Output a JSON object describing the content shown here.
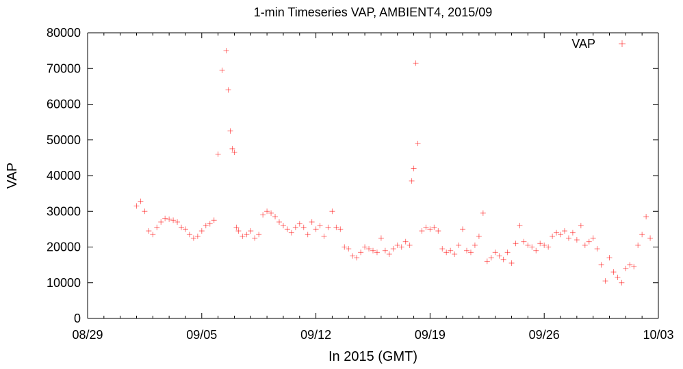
{
  "chart_data": {
    "type": "scatter",
    "title": "1-min Timeseries VAP, AMBIENT4, 2015/09",
    "xlabel": "In 2015 (GMT)",
    "ylabel": "VAP",
    "ylim": [
      0,
      80000
    ],
    "yticks": [
      "0",
      "10000",
      "20000",
      "30000",
      "40000",
      "50000",
      "60000",
      "70000",
      "80000"
    ],
    "xlim": [
      "2015-08-29",
      "2015-10-03"
    ],
    "xticks": [
      {
        "date": "2015-08-29",
        "label": "08/29"
      },
      {
        "date": "2015-09-05",
        "label": "09/05"
      },
      {
        "date": "2015-09-12",
        "label": "09/12"
      },
      {
        "date": "2015-09-19",
        "label": "09/19"
      },
      {
        "date": "2015-09-26",
        "label": "09/26"
      },
      {
        "date": "2015-10-03",
        "label": "10/03"
      }
    ],
    "minor_ticks_per_major": 7,
    "grid": false,
    "legend_position": "top-right",
    "marker": "plus",
    "color": "#ff0000",
    "series": [
      {
        "name": "VAP",
        "x": [
          "2015-09-01 00:00",
          "2015-09-01 06:00",
          "2015-09-01 12:00",
          "2015-09-01 18:00",
          "2015-09-02 00:00",
          "2015-09-02 06:00",
          "2015-09-02 12:00",
          "2015-09-02 18:00",
          "2015-09-03 00:00",
          "2015-09-03 06:00",
          "2015-09-03 12:00",
          "2015-09-03 18:00",
          "2015-09-04 00:00",
          "2015-09-04 06:00",
          "2015-09-04 12:00",
          "2015-09-04 18:00",
          "2015-09-05 00:00",
          "2015-09-05 06:00",
          "2015-09-05 12:00",
          "2015-09-05 18:00",
          "2015-09-06 00:00",
          "2015-09-06 06:00",
          "2015-09-06 12:00",
          "2015-09-06 15:00",
          "2015-09-06 18:00",
          "2015-09-06 21:00",
          "2015-09-07 00:00",
          "2015-09-07 03:00",
          "2015-09-07 06:00",
          "2015-09-07 12:00",
          "2015-09-07 18:00",
          "2015-09-08 00:00",
          "2015-09-08 06:00",
          "2015-09-08 12:00",
          "2015-09-08 18:00",
          "2015-09-09 00:00",
          "2015-09-09 06:00",
          "2015-09-09 12:00",
          "2015-09-09 18:00",
          "2015-09-10 00:00",
          "2015-09-10 06:00",
          "2015-09-10 12:00",
          "2015-09-10 18:00",
          "2015-09-11 00:00",
          "2015-09-11 06:00",
          "2015-09-11 12:00",
          "2015-09-11 18:00",
          "2015-09-12 00:00",
          "2015-09-12 06:00",
          "2015-09-12 12:00",
          "2015-09-12 18:00",
          "2015-09-13 00:00",
          "2015-09-13 06:00",
          "2015-09-13 12:00",
          "2015-09-13 18:00",
          "2015-09-14 00:00",
          "2015-09-14 06:00",
          "2015-09-14 12:00",
          "2015-09-14 18:00",
          "2015-09-15 00:00",
          "2015-09-15 06:00",
          "2015-09-15 12:00",
          "2015-09-15 18:00",
          "2015-09-16 00:00",
          "2015-09-16 06:00",
          "2015-09-16 12:00",
          "2015-09-16 18:00",
          "2015-09-17 00:00",
          "2015-09-17 06:00",
          "2015-09-17 12:00",
          "2015-09-17 18:00",
          "2015-09-17 21:00",
          "2015-09-18 00:00",
          "2015-09-18 03:00",
          "2015-09-18 06:00",
          "2015-09-18 12:00",
          "2015-09-18 18:00",
          "2015-09-19 00:00",
          "2015-09-19 06:00",
          "2015-09-19 12:00",
          "2015-09-19 18:00",
          "2015-09-20 00:00",
          "2015-09-20 06:00",
          "2015-09-20 12:00",
          "2015-09-20 18:00",
          "2015-09-21 00:00",
          "2015-09-21 06:00",
          "2015-09-21 12:00",
          "2015-09-21 18:00",
          "2015-09-22 00:00",
          "2015-09-22 06:00",
          "2015-09-22 12:00",
          "2015-09-22 18:00",
          "2015-09-23 00:00",
          "2015-09-23 06:00",
          "2015-09-23 12:00",
          "2015-09-23 18:00",
          "2015-09-24 00:00",
          "2015-09-24 06:00",
          "2015-09-24 12:00",
          "2015-09-24 18:00",
          "2015-09-25 00:00",
          "2015-09-25 06:00",
          "2015-09-25 12:00",
          "2015-09-25 18:00",
          "2015-09-26 00:00",
          "2015-09-26 06:00",
          "2015-09-26 12:00",
          "2015-09-26 18:00",
          "2015-09-27 00:00",
          "2015-09-27 06:00",
          "2015-09-27 12:00",
          "2015-09-27 18:00",
          "2015-09-28 00:00",
          "2015-09-28 06:00",
          "2015-09-28 12:00",
          "2015-09-28 18:00",
          "2015-09-29 00:00",
          "2015-09-29 06:00",
          "2015-09-29 12:00",
          "2015-09-29 18:00",
          "2015-09-30 00:00",
          "2015-09-30 06:00",
          "2015-09-30 12:00",
          "2015-09-30 18:00",
          "2015-10-01 00:00",
          "2015-10-01 06:00",
          "2015-10-01 12:00",
          "2015-10-01 18:00",
          "2015-10-02 00:00",
          "2015-10-02 06:00",
          "2015-10-02 12:00"
        ],
        "y": [
          31500,
          32800,
          30000,
          24500,
          23500,
          25500,
          27000,
          28000,
          27800,
          27500,
          27000,
          25500,
          25000,
          23500,
          22500,
          23000,
          24500,
          26000,
          26500,
          27500,
          46000,
          69500,
          75000,
          64000,
          52500,
          47500,
          46500,
          25500,
          24500,
          23000,
          23500,
          24500,
          22500,
          23500,
          29000,
          30000,
          29500,
          28500,
          27000,
          26000,
          25000,
          24000,
          25500,
          26500,
          25500,
          23500,
          27000,
          25000,
          26000,
          23000,
          25500,
          30000,
          25500,
          25000,
          20000,
          19500,
          17500,
          17000,
          18500,
          20000,
          19500,
          19000,
          18500,
          22500,
          19000,
          18000,
          19500,
          20500,
          20000,
          21500,
          20500,
          38500,
          42000,
          71500,
          49000,
          24500,
          25500,
          25000,
          25500,
          24500,
          19500,
          18500,
          19000,
          18000,
          20500,
          25000,
          19000,
          18500,
          20500,
          23000,
          29500,
          16000,
          17000,
          18500,
          17500,
          16500,
          18500,
          15500,
          21000,
          26000,
          21500,
          20500,
          20000,
          19000,
          21000,
          20500,
          20000,
          23000,
          24000,
          23500,
          24500,
          22500,
          24000,
          22000,
          26000,
          20500,
          21500,
          22500,
          19500,
          15000,
          10500,
          17000,
          13000,
          11500,
          10000,
          14000,
          15000,
          14500,
          20500,
          23500,
          28500,
          22500
        ]
      }
    ]
  }
}
